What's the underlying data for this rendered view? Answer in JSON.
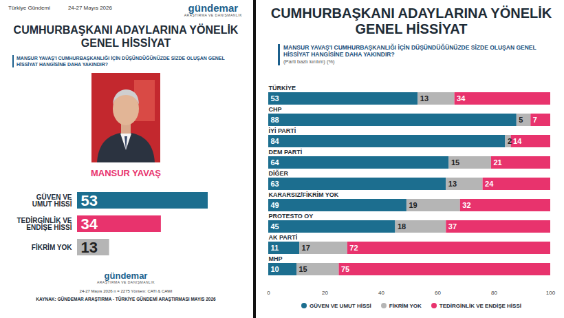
{
  "page": {
    "header_left": "Türkiye Gündemi",
    "header_date": "24-27 Mayıs 2026",
    "logo": "gündemar",
    "logo_sub": "ARAŞTIRMA VE DANIŞMANLIK",
    "footer_line": "24-27 Mayıs 2026 n = 2275 Yöntem: CATI & CAWI",
    "source": "KAYNAK: GÜNDEMAR ARAŞTIRMA - TÜRKİYE GÜNDEMİ ARAŞTIRMASI MAYIS 2026"
  },
  "chart_data": [
    {
      "type": "bar",
      "title": "CUMHURBAŞKANI ADAYLARINA YÖNELİK GENEL HİSSİYAT",
      "subtitle": "MANSUR YAVAŞ'I CUMHURBAŞKANLIĞI İÇİN DÜŞÜNDÜĞÜNÜZDE SİZDE OLUŞAN GENEL HİSSİYAT HANGİSİNE DAHA YAKINDIR?",
      "candidate": "MANSUR YAVAŞ",
      "orientation": "horizontal",
      "categories": [
        "GÜVEN VE UMUT HİSSİ",
        "TEDİRGİNLİK VE ENDİŞE HİSSİ",
        "FİKRİM YOK"
      ],
      "values": [
        53,
        34,
        13
      ],
      "colors": [
        "#1c6e8f",
        "#e8336d",
        "#b5b5b5"
      ],
      "data_labels": true,
      "tick_labels": "y"
    },
    {
      "type": "bar",
      "title": "CUMHURBAŞKANI ADAYLARINA YÖNELİK GENEL HİSSİYAT",
      "subtitle": "MANSUR YAVAŞ'I CUMHURBAŞKANLIĞI İÇİN DÜŞÜNDÜĞÜNÜZDE SİZDE OLUŞAN GENEL HİSSİYAT HANGİSİNE DAHA YAKINDIR?",
      "note": "(Parti bazlı kırılım) (%)",
      "orientation": "horizontal",
      "stacked": true,
      "categories": [
        "TÜRKİYE",
        "CHP",
        "İYİ PARTİ",
        "DEM PARTİ",
        "DİĞER",
        "KARARSIZ/FİKRİM YOK",
        "PROTESTO OY",
        "AK PARTİ",
        "MHP"
      ],
      "series": [
        {
          "name": "GÜVEN VE UMUT HİSSİ",
          "color": "#1c6e8f",
          "values": [
            53,
            88,
            84,
            64,
            63,
            49,
            45,
            11,
            10
          ]
        },
        {
          "name": "FİKRİM YOK",
          "color": "#b5b5b5",
          "values": [
            13,
            5,
            2,
            15,
            13,
            19,
            18,
            17,
            15
          ]
        },
        {
          "name": "TEDİRGİNLİK VE ENDİŞE HİSSİ",
          "color": "#e8336d",
          "values": [
            34,
            7,
            14,
            21,
            24,
            32,
            37,
            72,
            75
          ]
        }
      ],
      "xlim": [
        0,
        100
      ],
      "xticks": [
        0,
        20,
        40,
        60,
        80,
        100
      ],
      "data_labels": true,
      "legend": "bottom",
      "tick_labels": "x"
    }
  ]
}
